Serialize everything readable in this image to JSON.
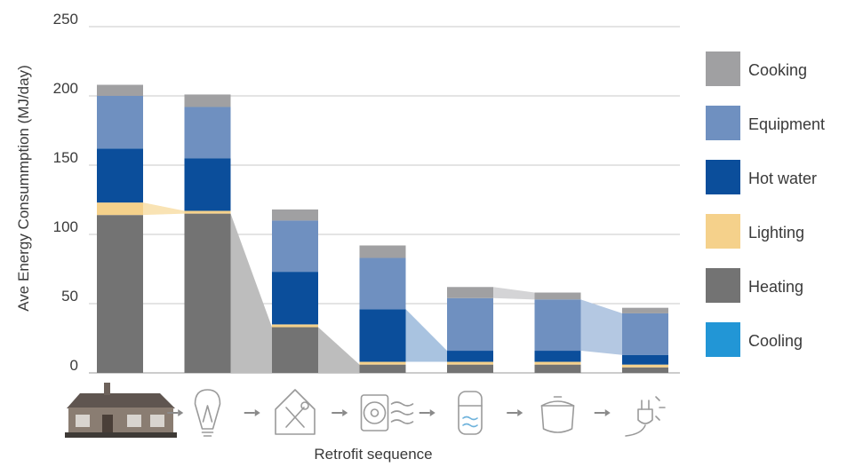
{
  "chart_data": {
    "type": "bar",
    "stacked": true,
    "ylabel": "Ave Energy Consummption (MJ/day)",
    "xlabel": "Retrofit sequence",
    "ylim": [
      0,
      250
    ],
    "yticks": [
      0,
      50,
      100,
      150,
      200,
      250
    ],
    "grid": true,
    "legend_position": "right",
    "categories": [
      "Original house",
      "Efficient lighting",
      "Insulation and draughtproofing",
      "Heat pump",
      "Heat pump water heater",
      "Efficient cooking",
      "Efficient appliances"
    ],
    "category_icons": [
      "house-photo",
      "light-bulb-icon",
      "house-tools-icon",
      "heat-pump-icon",
      "water-heater-icon",
      "cooking-pot-icon",
      "plug-icon"
    ],
    "series": [
      {
        "name": "Heating",
        "color": "#737373",
        "values": [
          114,
          115,
          33,
          6,
          6,
          6,
          4
        ]
      },
      {
        "name": "Lighting",
        "color": "#f5d18b",
        "values": [
          9,
          2,
          2,
          2,
          2,
          2,
          2
        ]
      },
      {
        "name": "Hot water",
        "color": "#0b4e9b",
        "values": [
          39,
          38,
          38,
          38,
          8,
          8,
          7
        ]
      },
      {
        "name": "Equipment",
        "color": "#6f90c0",
        "values": [
          38,
          37,
          37,
          37,
          38,
          37,
          30
        ]
      },
      {
        "name": "Cooking",
        "color": "#a0a0a2",
        "values": [
          8,
          9,
          8,
          9,
          8,
          5,
          4
        ]
      },
      {
        "name": "Cooling",
        "color": "#2296d6",
        "values": [
          0,
          0,
          0,
          0,
          0,
          0,
          0
        ]
      }
    ],
    "legend": [
      "Cooking",
      "Equipment",
      "Hot water",
      "Lighting",
      "Heating",
      "Cooling"
    ]
  }
}
